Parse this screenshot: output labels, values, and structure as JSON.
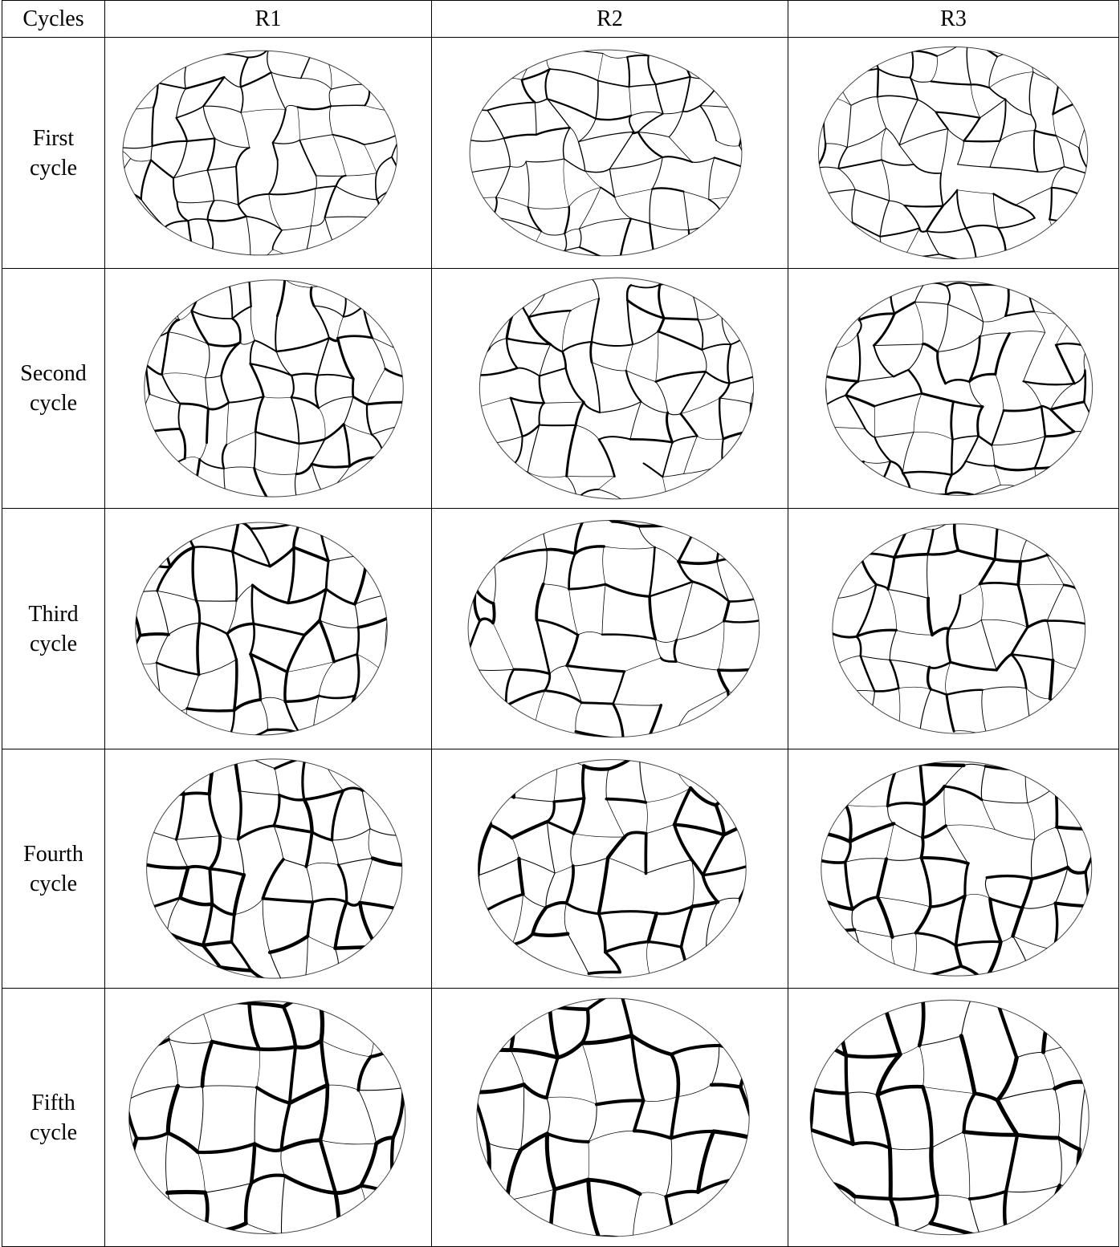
{
  "table": {
    "header": [
      "Cycles",
      "R1",
      "R2",
      "R3"
    ],
    "rows": [
      {
        "label": "First cycle"
      },
      {
        "label": "Second cycle"
      },
      {
        "label": "Third cycle"
      },
      {
        "label": "Fourth cycle"
      },
      {
        "label": "Fifth cycle"
      }
    ]
  }
}
